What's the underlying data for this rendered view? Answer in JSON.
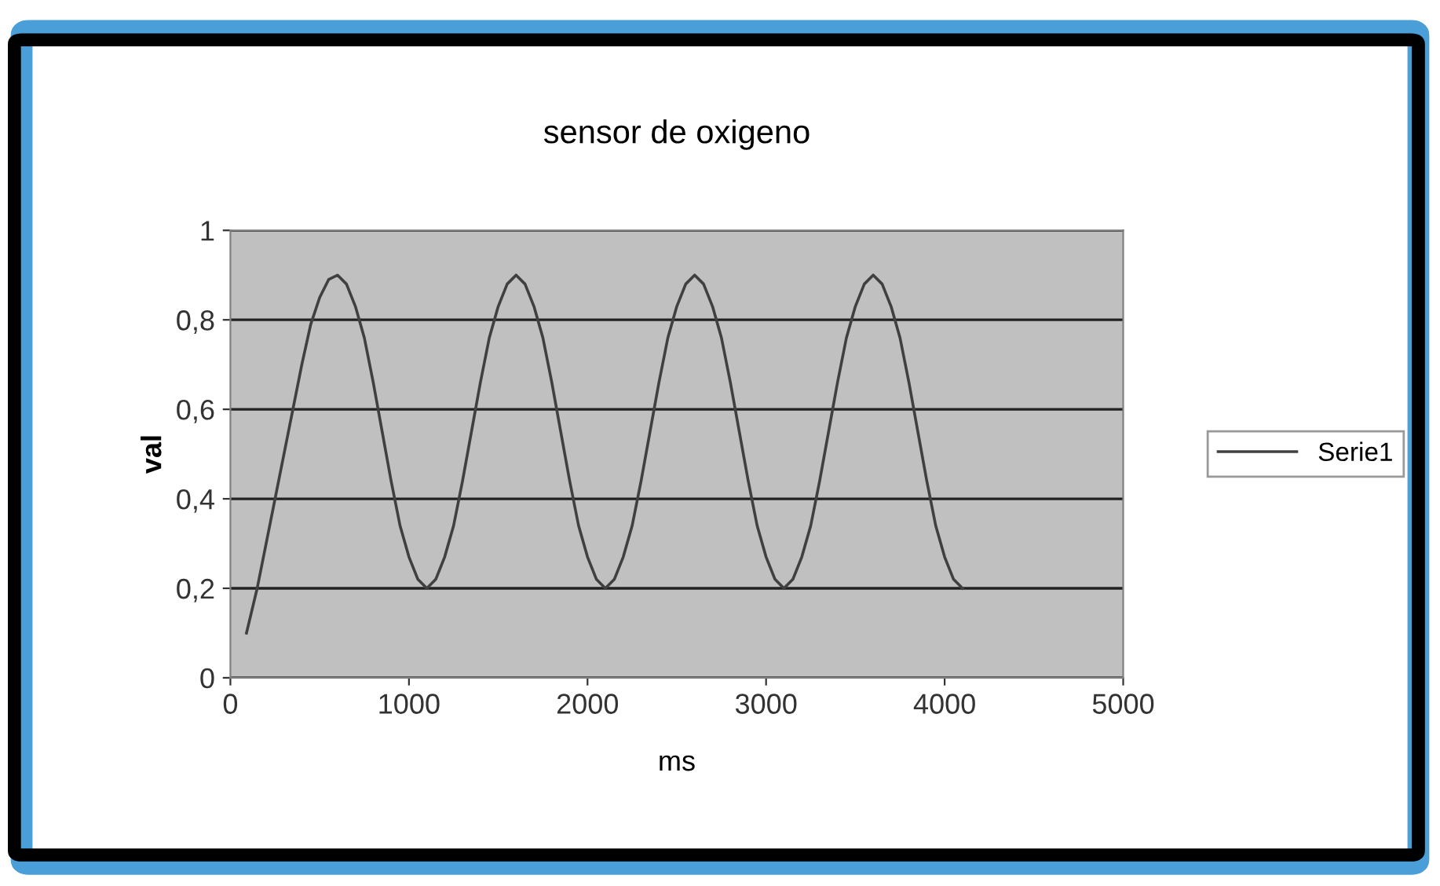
{
  "chart_data": {
    "type": "line",
    "title": "sensor de oxigeno",
    "xlabel": "ms",
    "ylabel": "val",
    "xlim": [
      0,
      5000
    ],
    "xticks": [
      0,
      1000,
      2000,
      3000,
      4000,
      5000
    ],
    "ylim": [
      0,
      1
    ],
    "yticks": [
      0,
      {
        "value": 0.2,
        "label": "0,2"
      },
      {
        "value": 0.4,
        "label": "0,4"
      },
      {
        "value": 0.6,
        "label": "0,6"
      },
      {
        "value": 0.8,
        "label": "0,8"
      },
      1
    ],
    "grid": "y",
    "legend": "right",
    "marker": "none",
    "line_style": "solid",
    "x": [
      90,
      150,
      200,
      250,
      300,
      350,
      400,
      450,
      500,
      550,
      600,
      650,
      700,
      750,
      800,
      850,
      900,
      950,
      1000,
      1050,
      1100,
      1150,
      1200,
      1250,
      1300,
      1350,
      1400,
      1450,
      1500,
      1550,
      1600,
      1650,
      1700,
      1750,
      1800,
      1850,
      1900,
      1950,
      2000,
      2050,
      2100,
      2150,
      2200,
      2250,
      2300,
      2350,
      2400,
      2450,
      2500,
      2550,
      2600,
      2650,
      2700,
      2750,
      2800,
      2850,
      2900,
      2950,
      3000,
      3050,
      3100,
      3150,
      3200,
      3250,
      3300,
      3350,
      3400,
      3450,
      3500,
      3550,
      3600,
      3650,
      3700,
      3750,
      3800,
      3850,
      3900,
      3950,
      4000,
      4050,
      4100
    ],
    "series": [
      {
        "name": "Serie1",
        "color": "#404040",
        "values": [
          0.1,
          0.2,
          0.3,
          0.4,
          0.5,
          0.6,
          0.7,
          0.79,
          0.85,
          0.89,
          0.9,
          0.88,
          0.83,
          0.76,
          0.66,
          0.55,
          0.44,
          0.34,
          0.27,
          0.22,
          0.2,
          0.22,
          0.27,
          0.34,
          0.44,
          0.55,
          0.66,
          0.76,
          0.83,
          0.88,
          0.9,
          0.88,
          0.83,
          0.76,
          0.66,
          0.55,
          0.44,
          0.34,
          0.27,
          0.22,
          0.2,
          0.22,
          0.27,
          0.34,
          0.44,
          0.55,
          0.66,
          0.76,
          0.83,
          0.88,
          0.9,
          0.88,
          0.83,
          0.76,
          0.66,
          0.55,
          0.44,
          0.34,
          0.27,
          0.22,
          0.2,
          0.22,
          0.27,
          0.34,
          0.44,
          0.55,
          0.66,
          0.76,
          0.83,
          0.88,
          0.9,
          0.88,
          0.83,
          0.76,
          0.66,
          0.55,
          0.44,
          0.34,
          0.27,
          0.22,
          0.2
        ]
      }
    ]
  }
}
